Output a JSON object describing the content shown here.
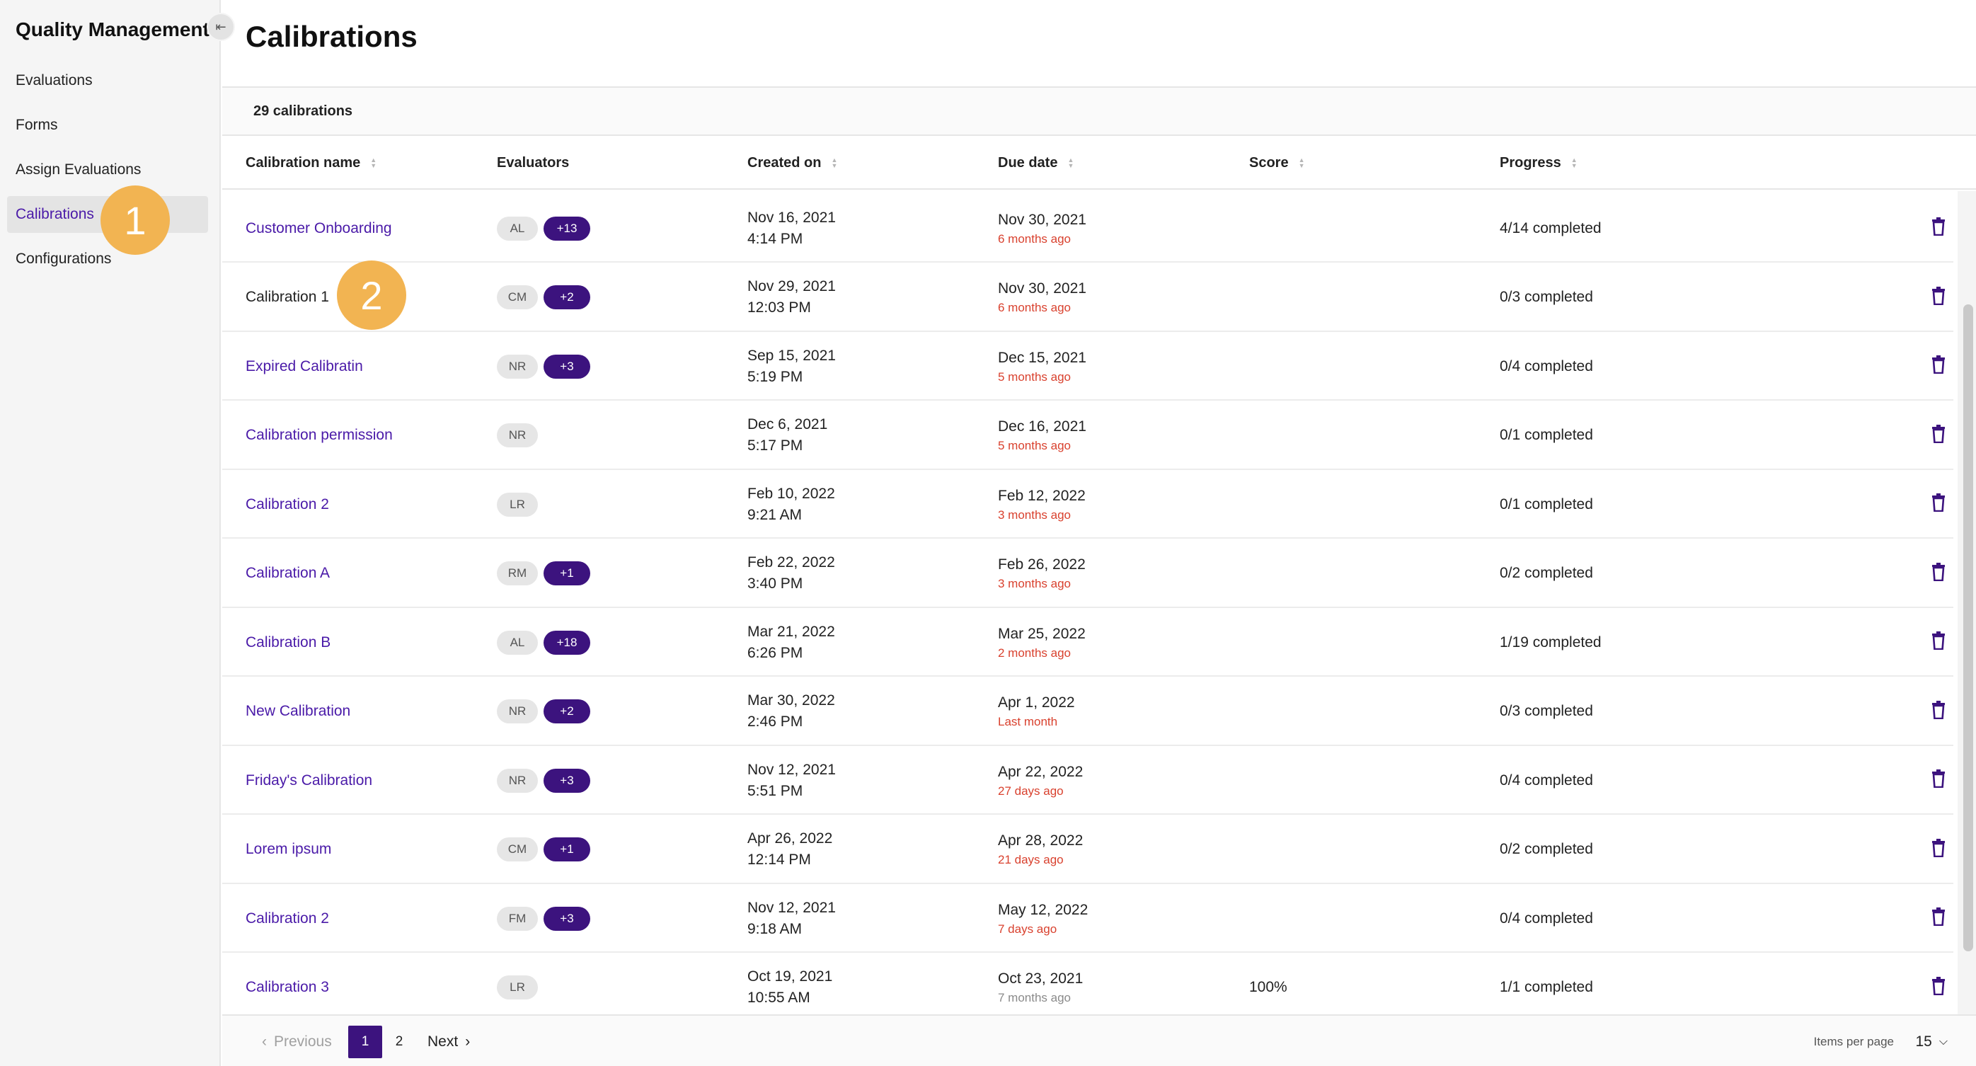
{
  "sidebar": {
    "title": "Quality Management",
    "items": [
      {
        "label": "Evaluations"
      },
      {
        "label": "Forms"
      },
      {
        "label": "Assign Evaluations"
      },
      {
        "label": "Calibrations",
        "active": true
      },
      {
        "label": "Configurations"
      }
    ]
  },
  "markers": [
    "1",
    "2"
  ],
  "header": {
    "title": "Calibrations"
  },
  "summary": {
    "count": "29 calibrations"
  },
  "columns": {
    "name": "Calibration name",
    "evaluators": "Evaluators",
    "created": "Created on",
    "due": "Due date",
    "score": "Score",
    "progress": "Progress"
  },
  "rows": [
    {
      "name": "Customer Onboarding",
      "evaluator": "AL",
      "more": "+13",
      "created_date": "Nov 16, 2021",
      "created_time": "4:14 PM",
      "due_date": "Nov 30, 2021",
      "due_rel": "6 months ago",
      "score": "",
      "progress": "4/14 completed"
    },
    {
      "name": "Calibration 1",
      "evaluator": "CM",
      "more": "+2",
      "created_date": "Nov 29, 2021",
      "created_time": "12:03 PM",
      "due_date": "Nov 30, 2021",
      "due_rel": "6 months ago",
      "score": "",
      "progress": "0/3 completed"
    },
    {
      "name": "Expired Calibratin",
      "evaluator": "NR",
      "more": "+3",
      "created_date": "Sep 15, 2021",
      "created_time": "5:19 PM",
      "due_date": "Dec 15, 2021",
      "due_rel": "5 months ago",
      "score": "",
      "progress": "0/4 completed"
    },
    {
      "name": "Calibration permission",
      "evaluator": "NR",
      "more": "",
      "created_date": "Dec 6, 2021",
      "created_time": "5:17 PM",
      "due_date": "Dec 16, 2021",
      "due_rel": "5 months ago",
      "score": "",
      "progress": "0/1 completed"
    },
    {
      "name": "Calibration 2",
      "evaluator": "LR",
      "more": "",
      "created_date": "Feb 10, 2022",
      "created_time": "9:21 AM",
      "due_date": "Feb 12, 2022",
      "due_rel": "3 months ago",
      "score": "",
      "progress": "0/1 completed"
    },
    {
      "name": "Calibration A",
      "evaluator": "RM",
      "more": "+1",
      "created_date": "Feb 22, 2022",
      "created_time": "3:40 PM",
      "due_date": "Feb 26, 2022",
      "due_rel": "3 months ago",
      "score": "",
      "progress": "0/2 completed"
    },
    {
      "name": "Calibration B",
      "evaluator": "AL",
      "more": "+18",
      "created_date": "Mar 21, 2022",
      "created_time": "6:26 PM",
      "due_date": "Mar 25, 2022",
      "due_rel": "2 months ago",
      "score": "",
      "progress": "1/19 completed"
    },
    {
      "name": "New Calibration",
      "evaluator": "NR",
      "more": "+2",
      "created_date": "Mar 30, 2022",
      "created_time": "2:46 PM",
      "due_date": "Apr 1, 2022",
      "due_rel": "Last month",
      "score": "",
      "progress": "0/3 completed"
    },
    {
      "name": "Friday's Calibration",
      "evaluator": "NR",
      "more": "+3",
      "created_date": "Nov 12, 2021",
      "created_time": "5:51 PM",
      "due_date": "Apr 22, 2022",
      "due_rel": "27 days ago",
      "score": "",
      "progress": "0/4 completed"
    },
    {
      "name": "Lorem ipsum",
      "evaluator": "CM",
      "more": "+1",
      "created_date": "Apr 26, 2022",
      "created_time": "12:14 PM",
      "due_date": "Apr 28, 2022",
      "due_rel": "21 days ago",
      "score": "",
      "progress": "0/2 completed"
    },
    {
      "name": "Calibration 2",
      "evaluator": "FM",
      "more": "+3",
      "created_date": "Nov 12, 2021",
      "created_time": "9:18 AM",
      "due_date": "May 12, 2022",
      "due_rel": "7 days ago",
      "score": "",
      "progress": "0/4 completed"
    },
    {
      "name": "Calibration 3",
      "evaluator": "LR",
      "more": "",
      "created_date": "Oct 19, 2021",
      "created_time": "10:55 AM",
      "due_date": "Oct 23, 2021",
      "due_rel": "7 months ago",
      "due_rel_muted": true,
      "score": "100%",
      "progress": "1/1 completed"
    }
  ],
  "pagination": {
    "previous": "Previous",
    "pages": [
      "1",
      "2"
    ],
    "current": "1",
    "next": "Next",
    "items_per_page_label": "Items per page",
    "items_per_page": "15"
  },
  "colors": {
    "accent": "#3c137e",
    "link": "#4a1aa8",
    "overdue": "#d9412e",
    "marker": "#f2b452"
  }
}
